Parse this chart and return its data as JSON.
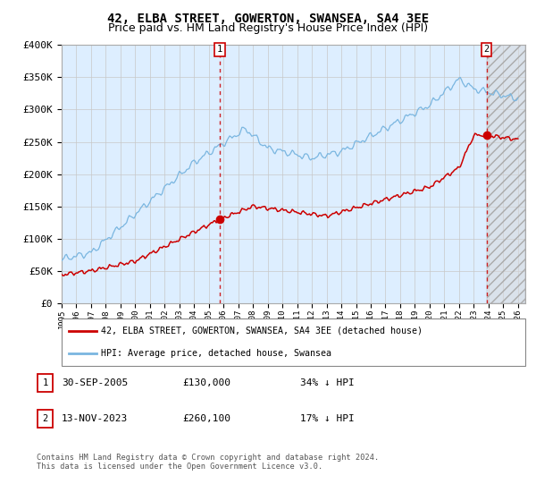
{
  "title": "42, ELBA STREET, GOWERTON, SWANSEA, SA4 3EE",
  "subtitle": "Price paid vs. HM Land Registry's House Price Index (HPI)",
  "hpi_label": "HPI: Average price, detached house, Swansea",
  "property_label": "42, ELBA STREET, GOWERTON, SWANSEA, SA4 3EE (detached house)",
  "annotation1": {
    "date": "30-SEP-2005",
    "price": "£130,000",
    "pct": "34% ↓ HPI",
    "x_year": 2005.75,
    "y_val": 130000
  },
  "annotation2": {
    "date": "13-NOV-2023",
    "price": "£260,100",
    "pct": "17% ↓ HPI",
    "x_year": 2023.87,
    "y_val": 260100
  },
  "ylabel_ticks": [
    "£0",
    "£50K",
    "£100K",
    "£150K",
    "£200K",
    "£250K",
    "£300K",
    "£350K",
    "£400K"
  ],
  "ytick_vals": [
    0,
    50000,
    100000,
    150000,
    200000,
    250000,
    300000,
    350000,
    400000
  ],
  "xmin": 1995.0,
  "xmax": 2026.5,
  "ymin": 0,
  "ymax": 400000,
  "hpi_color": "#7ab6e0",
  "property_color": "#cc0000",
  "dashed_line_color": "#cc0000",
  "grid_color": "#c8c8c8",
  "plot_bg": "#ddeeff",
  "hatch_bg": "#cccccc",
  "footer": "Contains HM Land Registry data © Crown copyright and database right 2024.\nThis data is licensed under the Open Government Licence v3.0.",
  "legend1_color": "#cc0000",
  "legend2_color": "#7ab6e0",
  "title_fontsize": 10,
  "subtitle_fontsize": 9
}
